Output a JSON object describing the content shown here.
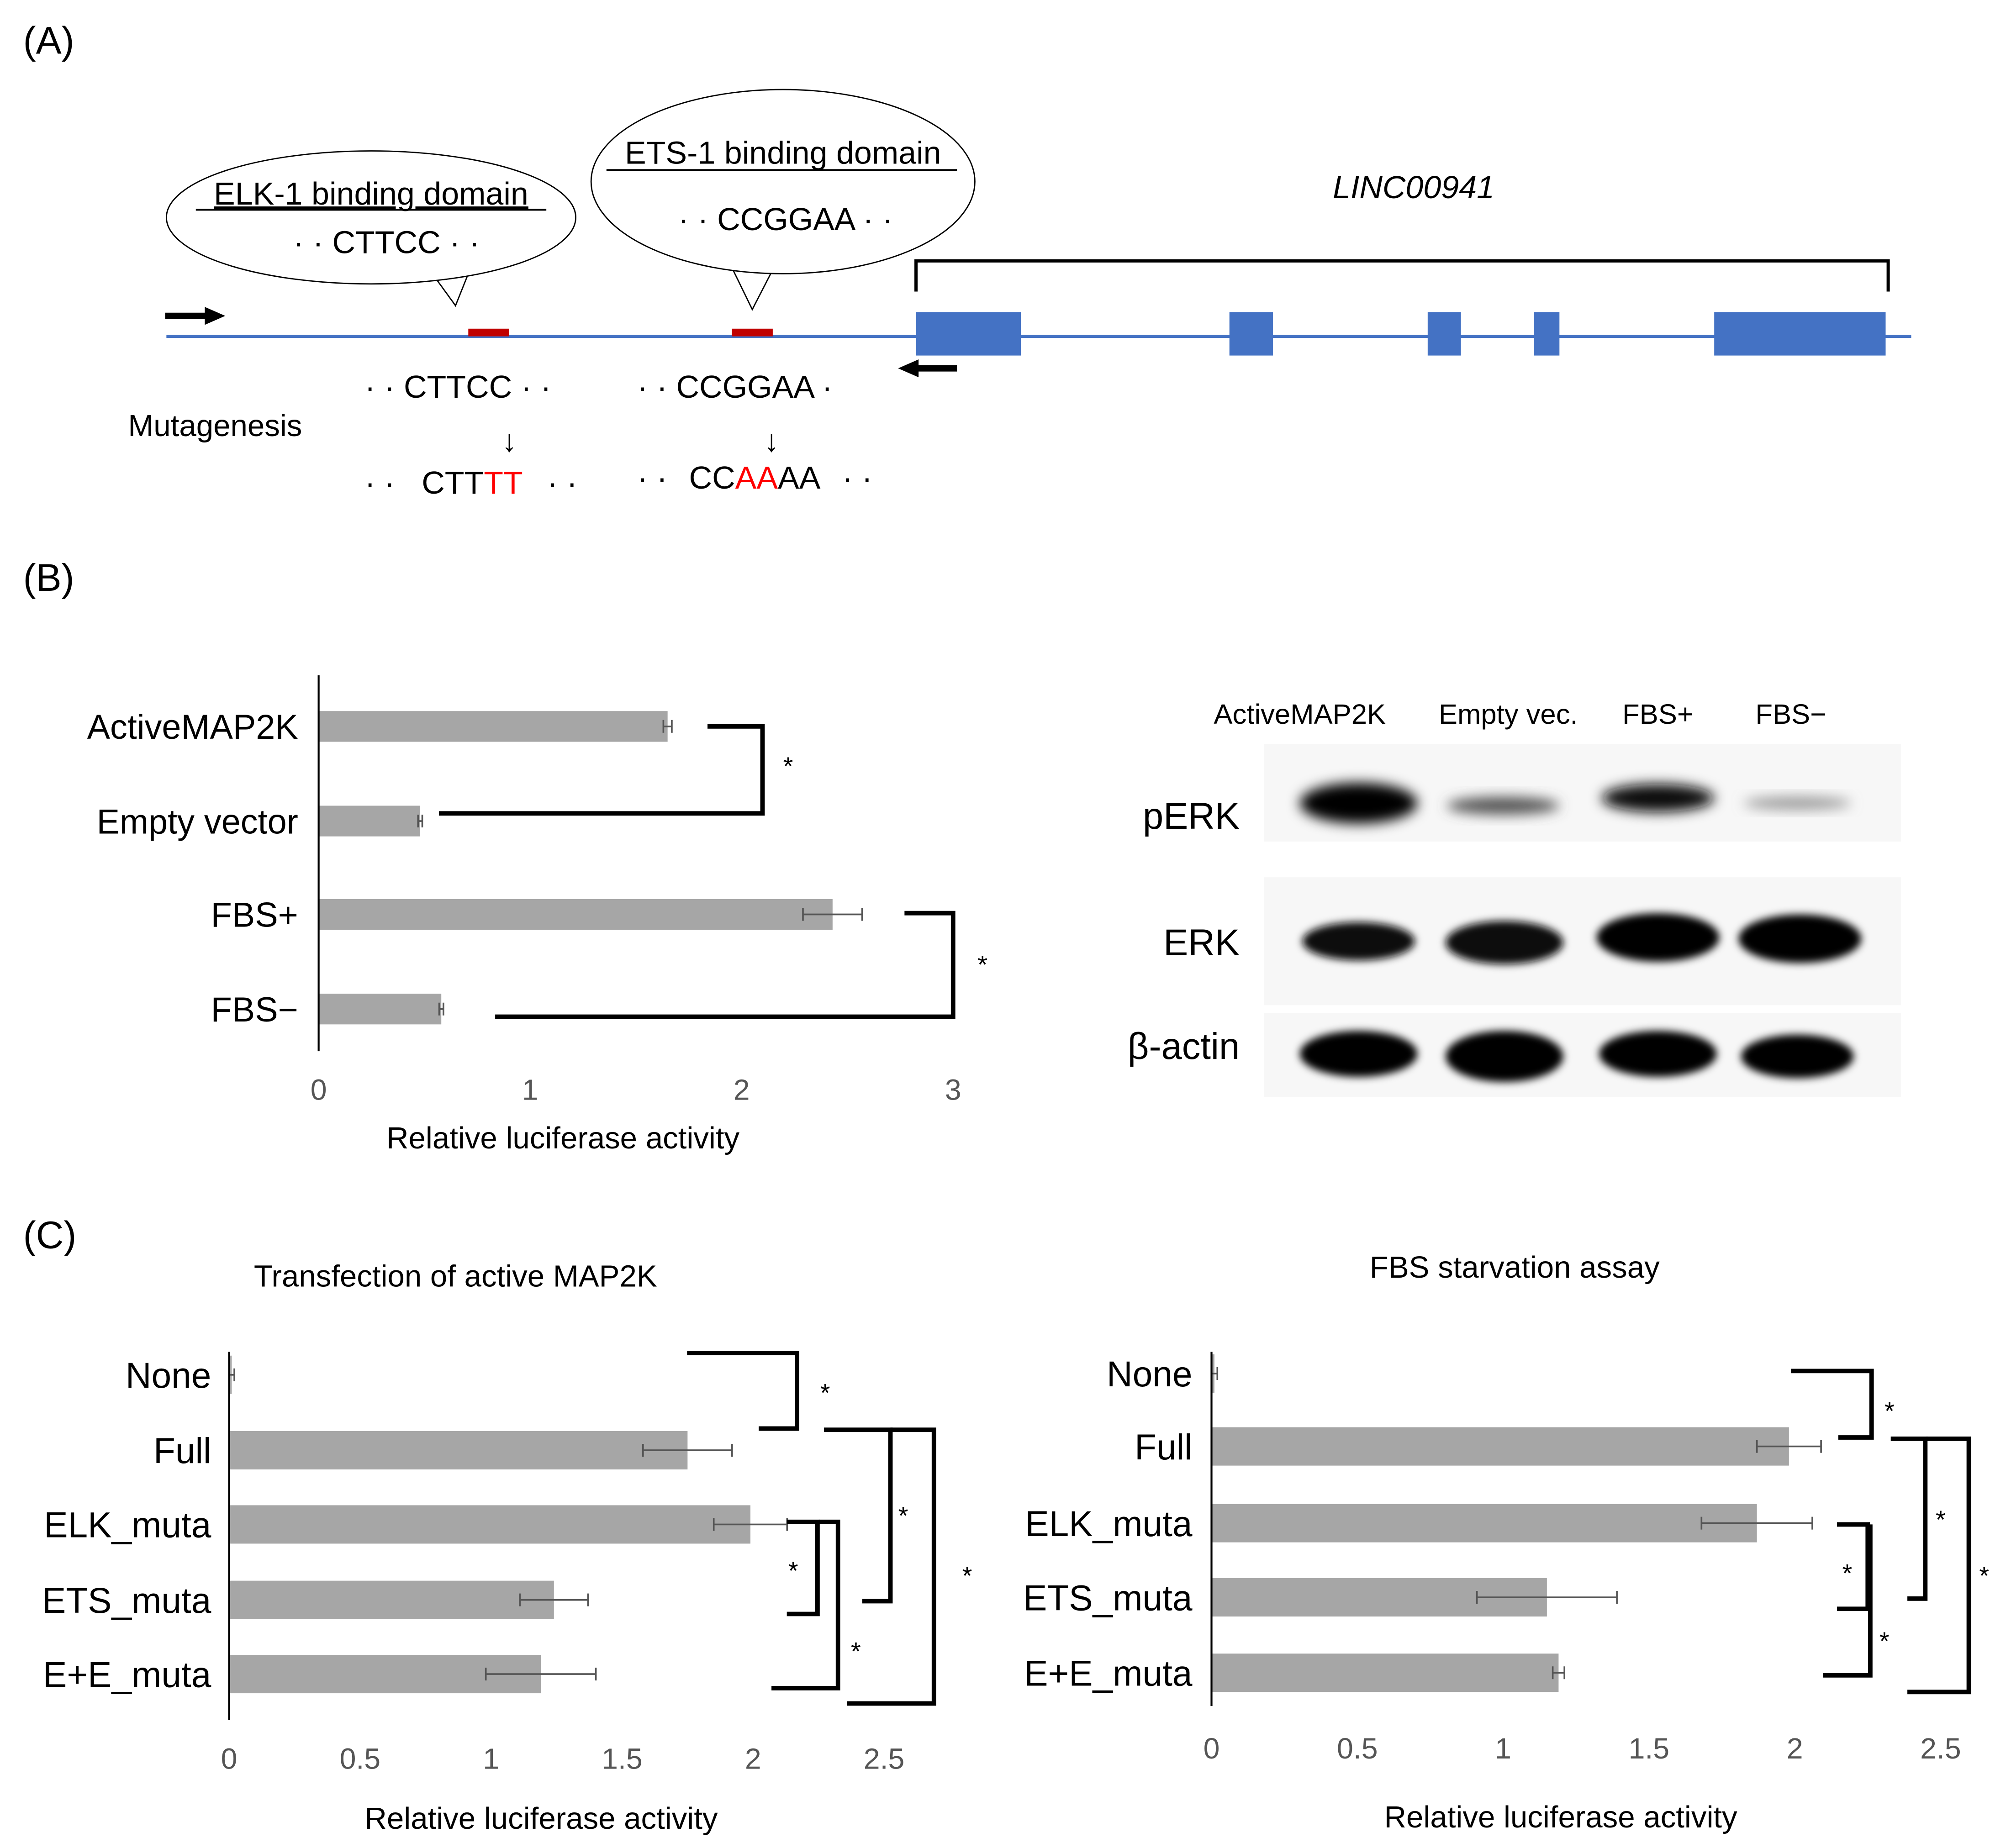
{
  "panel_labels": {
    "a": "(A)",
    "b": "(B)",
    "c": "(C)"
  },
  "panel_a": {
    "gene_name": "LINC00941",
    "elk_callout": {
      "title": "ELK-1 binding domain",
      "sequence": "· · CTTCC · ·"
    },
    "ets_callout": {
      "title": "ETS-1 binding domain",
      "sequence": "· · CCGGAA · ·"
    },
    "mutagenesis_label": "Mutagenesis",
    "elk_original": "· · CTTCC · ·",
    "ets_original": "· · CCGGAA ·",
    "arrow_down": "↓",
    "elk_mutated": {
      "left_dots": "· ·",
      "kept": "CTT",
      "changed": "TT",
      "right_dots": "· ·"
    },
    "ets_mutated": {
      "left_dots": "· ·",
      "kept_start": "CC",
      "changed": "AA",
      "kept_end": "AA",
      "right_dots": "· ·"
    },
    "colors": {
      "track": "#4472c4",
      "exon": "#4472c4",
      "site": "#c00000",
      "mutation": "#ff0000"
    }
  },
  "panel_b_western": {
    "lanes": [
      "ActiveMAP2K",
      "Empty vec.",
      "FBS+",
      "FBS−"
    ],
    "rows": [
      "pERK",
      "ERK",
      "β-actin"
    ]
  },
  "chart_data": [
    {
      "type": "bar",
      "orientation": "horizontal",
      "panel": "B",
      "title": "",
      "categories": [
        "ActiveMAP2K",
        "Empty vector",
        "FBS+",
        "FBS−"
      ],
      "values": [
        1.65,
        0.48,
        2.43,
        0.58
      ],
      "errors": [
        0.02,
        0.01,
        0.14,
        0.01
      ],
      "xlabel": "Relative luciferase activity",
      "xlim": [
        0,
        3
      ],
      "xticks": [
        "0",
        "1",
        "2",
        "3"
      ],
      "significance": [
        "*",
        "*"
      ],
      "bar_color": "#a6a6a6"
    },
    {
      "type": "bar",
      "orientation": "horizontal",
      "panel": "C-left",
      "title": "Transfection of active MAP2K",
      "categories": [
        "None",
        "Full",
        "ELK_muta",
        "ETS_muta",
        "E+E_muta"
      ],
      "values": [
        0.01,
        1.75,
        1.99,
        1.24,
        1.19
      ],
      "errors": [
        0.01,
        0.17,
        0.14,
        0.13,
        0.21
      ],
      "xlabel": "Relative luciferase activity",
      "xlim": [
        0,
        2.5
      ],
      "xticks": [
        "0",
        "0.5",
        "1",
        "1.5",
        "2",
        "2.5"
      ],
      "significance": [
        "*",
        "*",
        "*",
        "*",
        "*"
      ],
      "bar_color": "#a6a6a6"
    },
    {
      "type": "bar",
      "orientation": "horizontal",
      "panel": "C-right",
      "title": "FBS starvation assay",
      "categories": [
        "None",
        "Full",
        "ELK_muta",
        "ETS_muta",
        "E+E_muta"
      ],
      "values": [
        0.01,
        1.98,
        1.87,
        1.15,
        1.19
      ],
      "errors": [
        0.01,
        0.11,
        0.19,
        0.24,
        0.02
      ],
      "xlabel": "Relative luciferase activity",
      "xlim": [
        0,
        2.5
      ],
      "xticks": [
        "0",
        "0.5",
        "1",
        "1.5",
        "2",
        "2.5"
      ],
      "significance": [
        "*",
        "*",
        "*",
        "*",
        "*"
      ],
      "bar_color": "#a6a6a6"
    }
  ]
}
